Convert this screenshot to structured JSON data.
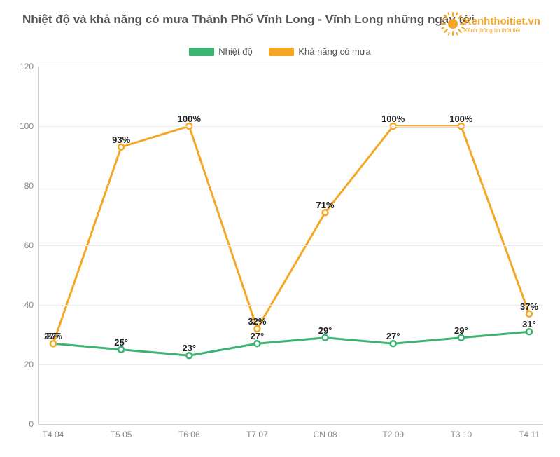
{
  "title": "Nhiệt độ và khả năng có mưa Thành Phố Vĩnh Long - Vĩnh Long những ngày tới",
  "logo": {
    "brand": "Kenhthoitiet.vn",
    "tagline": "Kênh thông tin thời tiết"
  },
  "legend": {
    "series1": {
      "label": "Nhiệt độ",
      "color": "#3cb371"
    },
    "series2": {
      "label": "Khả năng có mưa",
      "color": "#f5a623"
    }
  },
  "chart": {
    "type": "line",
    "background_color": "#ffffff",
    "grid_color": "#ececec",
    "axis_color": "#d0d0d0",
    "label_color": "#888888",
    "point_label_color": "#222222",
    "title_fontsize": 17,
    "label_fontsize": 12,
    "point_label_fontsize": 13,
    "line_width": 3,
    "marker_radius": 4,
    "ylim": [
      0,
      120
    ],
    "ytick_step": 20,
    "yticks": [
      0,
      20,
      40,
      60,
      80,
      100,
      120
    ],
    "categories": [
      "T4 04",
      "T5 05",
      "T6 06",
      "T7 07",
      "CN 08",
      "T2 09",
      "T3 10",
      "T4 11"
    ],
    "series": [
      {
        "name": "Nhiệt độ",
        "color": "#3cb371",
        "values": [
          27,
          25,
          23,
          27,
          29,
          27,
          29,
          31
        ],
        "point_labels": [
          "27°",
          "25°",
          "23°",
          "27°",
          "29°",
          "27°",
          "29°",
          "31°"
        ]
      },
      {
        "name": "Khả năng có mưa",
        "color": "#f5a623",
        "values": [
          27,
          93,
          100,
          32,
          71,
          100,
          100,
          37
        ],
        "point_labels": [
          "27%",
          "93%",
          "100%",
          "32%",
          "71%",
          "100%",
          "100%",
          "37%"
        ]
      }
    ]
  }
}
